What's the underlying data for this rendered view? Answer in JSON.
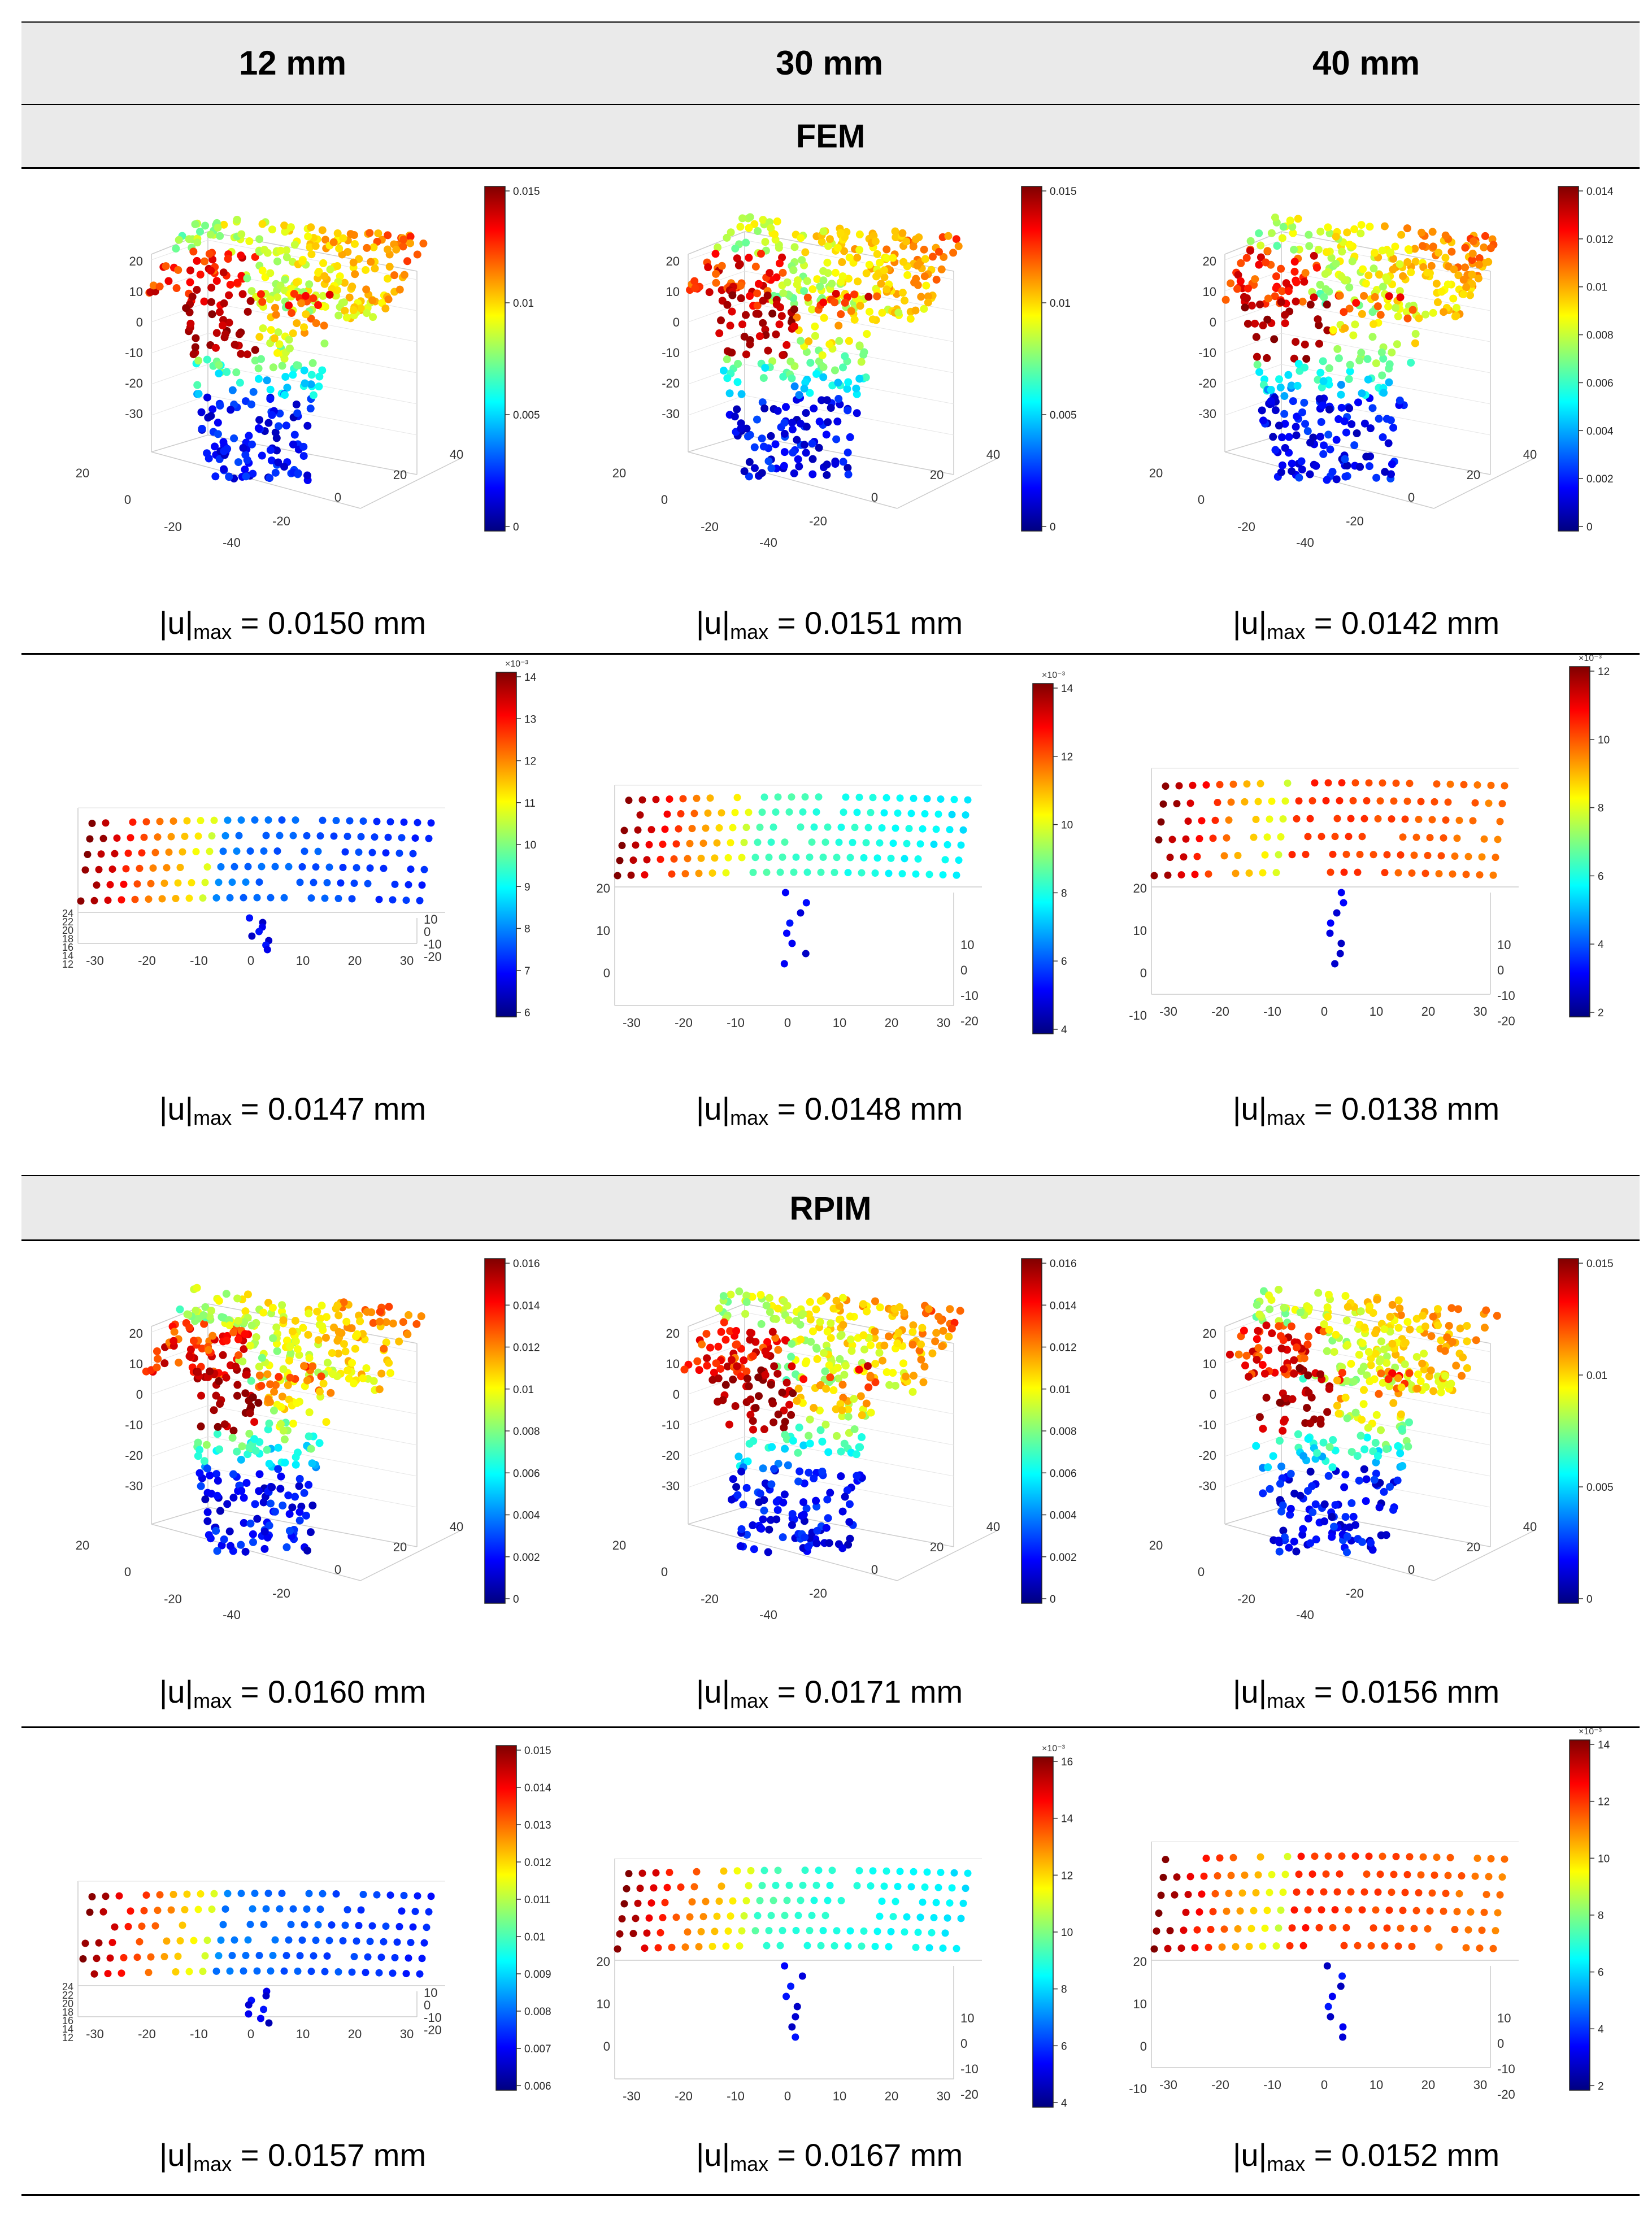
{
  "columns": [
    "12 mm",
    "30 mm",
    "40 mm"
  ],
  "sections": [
    "FEM",
    "RPIM"
  ],
  "u_prefix": "|u|",
  "u_sub": "max",
  "rows": [
    {
      "kind": "3d",
      "section": 0,
      "cells": [
        {
          "u": "= 0.0150 mm",
          "cb_ticks": [
            "0.015",
            "0.01",
            "0.005",
            "0"
          ],
          "cb_exp": ""
        },
        {
          "u": "= 0.0151 mm",
          "cb_ticks": [
            "0.015",
            "0.01",
            "0.005",
            "0"
          ],
          "cb_exp": ""
        },
        {
          "u": "= 0.0142 mm",
          "cb_ticks": [
            "0.014",
            "0.012",
            "0.01",
            "0.008",
            "0.006",
            "0.004",
            "0.002",
            "0"
          ],
          "cb_exp": ""
        }
      ]
    },
    {
      "kind": "2d",
      "section": 0,
      "cells": [
        {
          "u": "= 0.0147 mm",
          "cb_ticks": [
            "14",
            "13",
            "12",
            "11",
            "10",
            "9",
            "8",
            "7",
            "6"
          ],
          "cb_exp": "×10⁻³"
        },
        {
          "u": "= 0.0148 mm",
          "cb_ticks": [
            "14",
            "12",
            "10",
            "8",
            "6",
            "4"
          ],
          "cb_exp": "×10⁻³"
        },
        {
          "u": "= 0.0138 mm",
          "cb_ticks": [
            "12",
            "10",
            "8",
            "6",
            "4",
            "2"
          ],
          "cb_exp": "×10⁻³"
        }
      ]
    },
    {
      "kind": "3d",
      "section": 1,
      "cells": [
        {
          "u": "= 0.0160 mm",
          "cb_ticks": [
            "0.016",
            "0.014",
            "0.012",
            "0.01",
            "0.008",
            "0.006",
            "0.004",
            "0.002",
            "0"
          ],
          "cb_exp": ""
        },
        {
          "u": "= 0.0171 mm",
          "cb_ticks": [
            "0.016",
            "0.014",
            "0.012",
            "0.01",
            "0.008",
            "0.006",
            "0.004",
            "0.002",
            "0"
          ],
          "cb_exp": ""
        },
        {
          "u": "= 0.0156 mm",
          "cb_ticks": [
            "0.015",
            "0.01",
            "0.005",
            "0"
          ],
          "cb_exp": ""
        }
      ]
    },
    {
      "kind": "2d",
      "section": 1,
      "cells": [
        {
          "u": "= 0.0157 mm",
          "cb_ticks": [
            "0.015",
            "0.014",
            "0.013",
            "0.012",
            "0.011",
            "0.01",
            "0.009",
            "0.008",
            "0.007",
            "0.006"
          ],
          "cb_exp": ""
        },
        {
          "u": "= 0.0167 mm",
          "cb_ticks": [
            "16",
            "14",
            "12",
            "10",
            "8",
            "6",
            "4"
          ],
          "cb_exp": "×10⁻³"
        },
        {
          "u": "= 0.0152 mm",
          "cb_ticks": [
            "14",
            "12",
            "10",
            "8",
            "6",
            "4",
            "2"
          ],
          "cb_exp": "×10⁻³"
        }
      ]
    }
  ],
  "axes3d": {
    "z_ticks": [
      "20",
      "10",
      "0",
      "-10",
      "-20",
      "-30"
    ],
    "y_ticks": [
      "20",
      "0",
      "-20"
    ],
    "x_ticks": [
      "-40",
      "-20",
      "0",
      "20",
      "40"
    ]
  },
  "axes2d": {
    "x_ticks": [
      "-30",
      "-20",
      "-10",
      "0",
      "10",
      "20",
      "30"
    ],
    "y_ticks_small": [
      "24",
      "22",
      "20",
      "18",
      "16",
      "14",
      "12"
    ],
    "y_ticks_large": [
      "20",
      "10",
      "0"
    ],
    "y_ticks_large_ext": [
      "20",
      "10",
      "0",
      "-10"
    ],
    "side_ticks": [
      "10",
      "0",
      "-10",
      "-20"
    ]
  }
}
